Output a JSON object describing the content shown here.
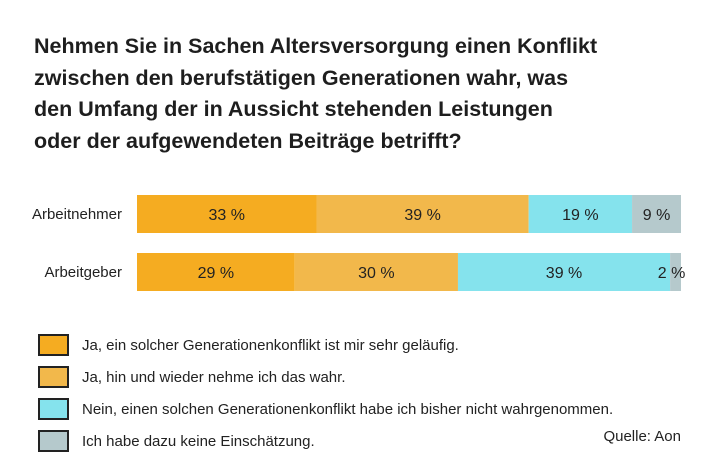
{
  "chart_data": {
    "type": "bar",
    "orientation": "horizontal",
    "stacked": true,
    "title": "Nehmen Sie in Sachen Altersversorgung einen Konflikt\nzwischen den berufstätigen Generationen wahr, was\nden Umfang der in Aussicht stehenden Leistungen\noder der aufgewendeten Beiträge betrifft?",
    "categories": [
      "Arbeitnehmer",
      "Arbeitgeber"
    ],
    "series": [
      {
        "name": "Ja, ein solcher Generationenkonflikt ist mir sehr geläufig.",
        "color": "#F5AC21",
        "values": [
          33,
          29
        ]
      },
      {
        "name": "Ja, hin und wieder nehme ich das wahr.",
        "color": "#F2B84B",
        "values": [
          39,
          30
        ]
      },
      {
        "name": "Nein, einen solchen Generationenkonflikt habe ich bisher nicht wahrgenommen.",
        "color": "#85E3ED",
        "values": [
          19,
          39
        ]
      },
      {
        "name": "Ich habe dazu keine Einschätzung.",
        "color": "#B5C9CC",
        "values": [
          9,
          2
        ]
      }
    ],
    "data_label_suffix": " %",
    "xlim": [
      0,
      100
    ],
    "grid": false,
    "legend": "bottom",
    "source": "Quelle: Aon"
  }
}
